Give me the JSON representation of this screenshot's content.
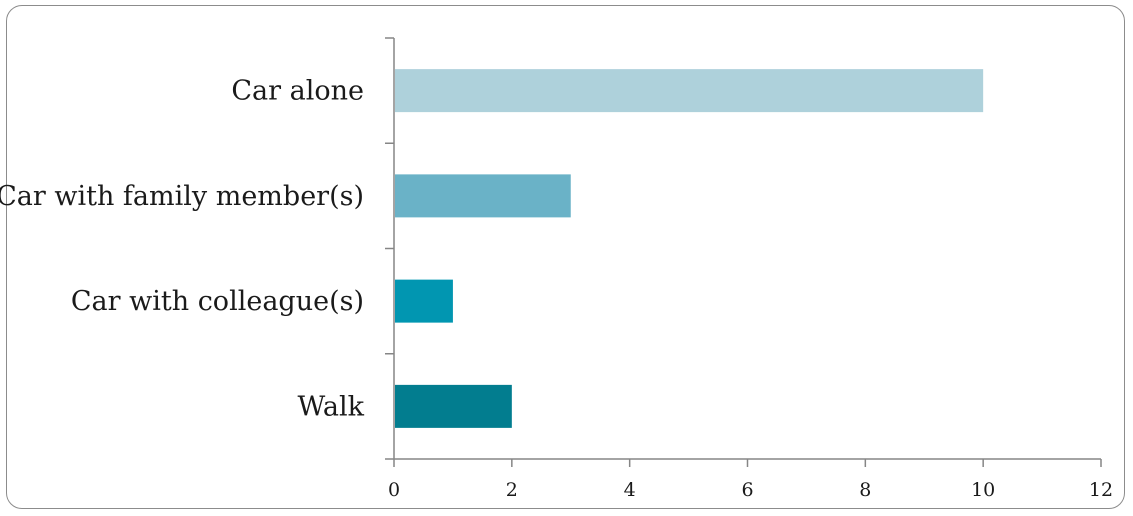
{
  "chart_data": {
    "type": "bar",
    "orientation": "horizontal",
    "categories": [
      "Car alone",
      "Car with family member(s)",
      "Car with colleague(s)",
      "Walk"
    ],
    "values": [
      10,
      3,
      1,
      2
    ],
    "colors": [
      "#aed1db",
      "#6ab2c7",
      "#0196b1",
      "#027d8f"
    ],
    "xlim": [
      0,
      12
    ],
    "xticks": [
      "0",
      "2",
      "4",
      "6",
      "8",
      "10",
      "12"
    ],
    "grid": false,
    "legend": "none"
  }
}
